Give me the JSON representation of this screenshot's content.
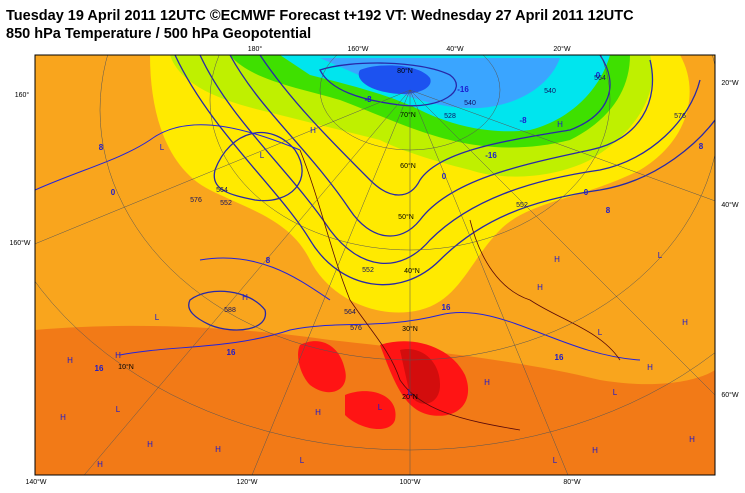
{
  "header": {
    "title": "Tuesday 19 April 2011 12UTC ©ECMWF Forecast t+192 VT: Wednesday 27 April 2011 12UTC",
    "subtitle": "850 hPa Temperature / 500 hPa Geopotential"
  },
  "map": {
    "graticule_labels": [
      "180°",
      "160°W",
      "40°W",
      "20°W",
      "160°",
      "160°W",
      "140°W",
      "120°W",
      "100°W",
      "80°W",
      "20°W",
      "40°W",
      "60°W",
      "80°N",
      "70°N",
      "60°N",
      "50°N",
      "40°N",
      "30°N",
      "20°N",
      "10°N"
    ],
    "temperature_labels": [
      "8",
      "0",
      "8",
      "16",
      "16",
      "16",
      "16",
      "8",
      "8",
      "0",
      "-8",
      "0",
      "-16",
      "-8",
      "-16",
      "0"
    ],
    "geopotential_labels": [
      "576",
      "552",
      "564",
      "588",
      "576",
      "564",
      "552",
      "540",
      "528",
      "552",
      "576",
      "564",
      "540"
    ],
    "pressure_centers": [
      "L",
      "L",
      "H",
      "H",
      "L",
      "H",
      "H",
      "L",
      "H",
      "H",
      "H",
      "H",
      "L",
      "H",
      "L",
      "H",
      "L",
      "H",
      "H",
      "L",
      "H",
      "L",
      "H",
      "L",
      "H",
      "H",
      "L",
      "H"
    ]
  }
}
